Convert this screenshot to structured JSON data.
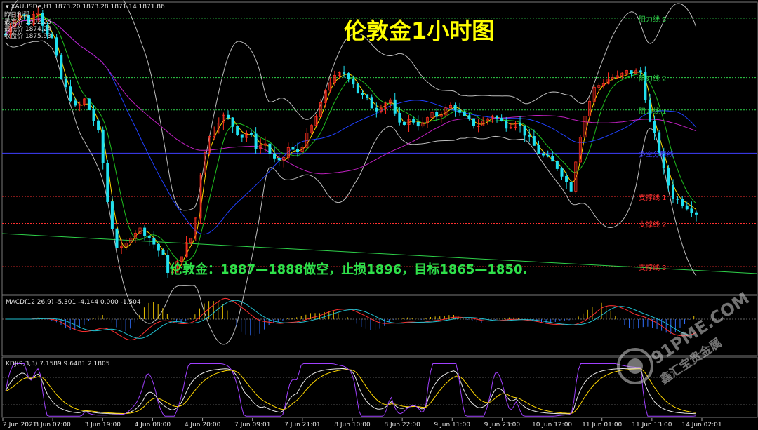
{
  "window": {
    "symbol_label": "XAUUSDe,H1",
    "ohlc_label": "1873.20 1873.28 1871.14 1871.86"
  },
  "info_box": {
    "lines": [
      "昨日利润",
      "最高价 1902.25",
      "最低价 1874.24",
      "收盘价 1875.93"
    ]
  },
  "main_title": "伦敦金1小时图",
  "trade_note": "伦敦金：1887—1888做空，止损1896，目标1865—1850.",
  "watermark": {
    "site": "91PME.COM",
    "name": "鑫汇宝贵金属"
  },
  "levels": [
    {
      "label": "阻力线 3",
      "color": "#2fd24a",
      "value": 1906
    },
    {
      "label": "阻力线 2",
      "color": "#2fd24a",
      "value": 1895
    },
    {
      "label": "阻力线 1",
      "color": "#2fd24a",
      "value": 1889
    },
    {
      "label": "多空分界线",
      "color": "#3f3fff",
      "value": 1881
    },
    {
      "label": "支撑线 1",
      "color": "#ff3030",
      "value": 1873
    },
    {
      "label": "支撑线 2",
      "color": "#ff3030",
      "value": 1868
    },
    {
      "label": "支撑线 3",
      "color": "#ff3030",
      "value": 1860
    }
  ],
  "macd": {
    "label": "MACD(12,26,9) -5.301 -4.144 0.000 -1.504"
  },
  "kdj": {
    "label": "KDJ(9,3,3) 7.1589 9.6481 2.1805"
  },
  "chart_data": {
    "type": "candlestick",
    "x_tick_labels": [
      "2 Jun 2021",
      "3 Jun 07:00",
      "3 Jun 19:00",
      "4 Jun 08:00",
      "4 Jun 20:00",
      "7 Jun 09:01",
      "7 Jun 21:01",
      "8 Jun 10:00",
      "8 Jun 22:00",
      "9 Jun 11:00",
      "9 Jun 23:00",
      "10 Jun 12:00",
      "11 Jun 01:00",
      "11 Jun 13:00",
      "14 Jun 02:01"
    ],
    "close_path": [
      1903,
      1906,
      1907,
      1905,
      1908,
      1904,
      1902,
      1895,
      1892,
      1889,
      1891,
      1888,
      1884,
      1872,
      1864,
      1863,
      1866,
      1867,
      1866,
      1864,
      1862,
      1858,
      1861,
      1864,
      1866,
      1880,
      1884,
      1887,
      1888,
      1886,
      1884,
      1885,
      1882,
      1883,
      1880,
      1879,
      1882,
      1881,
      1883,
      1886,
      1889,
      1894,
      1895,
      1896,
      1895,
      1892,
      1891,
      1889,
      1890,
      1891,
      1886,
      1887,
      1887,
      1886,
      1888,
      1888,
      1889,
      1890,
      1888,
      1887,
      1886,
      1887,
      1888,
      1887,
      1886,
      1887,
      1885,
      1883,
      1881,
      1880,
      1879,
      1877,
      1874,
      1883,
      1889,
      1893,
      1894,
      1895,
      1895,
      1896,
      1896,
      1896,
      1887,
      1883,
      1877,
      1873,
      1872,
      1871,
      1870
    ],
    "resistance_lines": [
      1906,
      1895,
      1889
    ],
    "pivot_line": 1881,
    "support_lines": [
      1873,
      1868,
      1860
    ]
  }
}
